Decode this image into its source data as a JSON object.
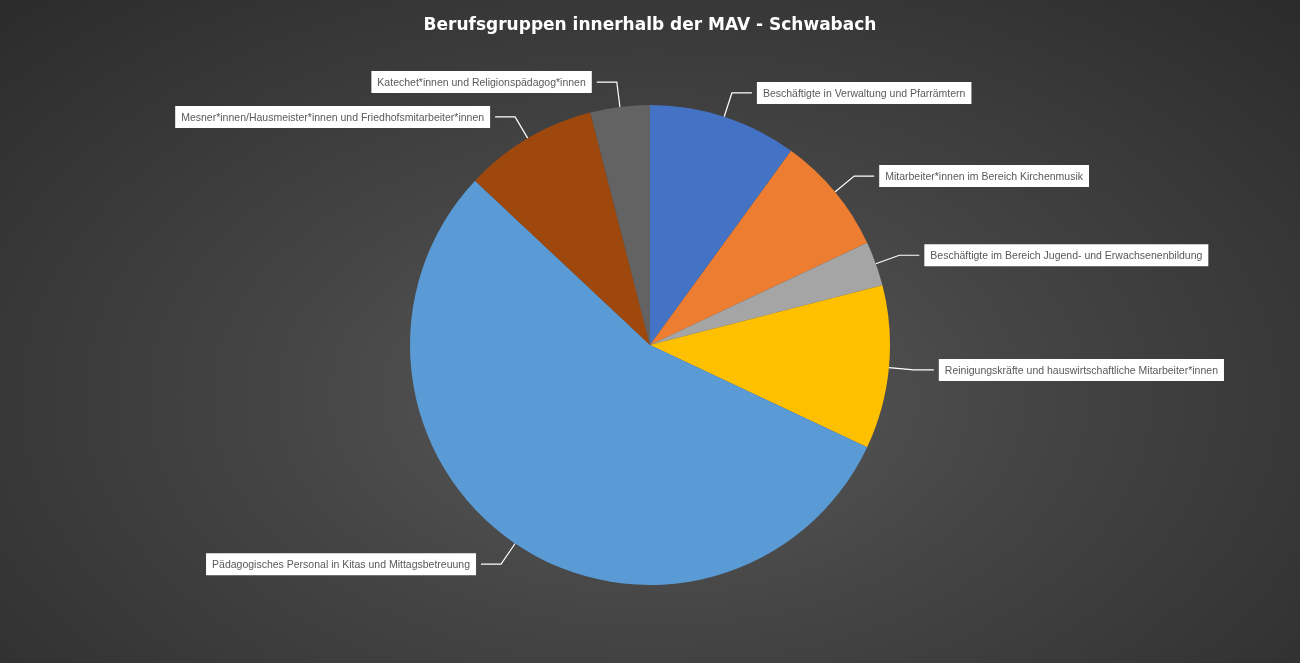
{
  "chart_data": {
    "type": "pie",
    "title": "Berufsgruppen innerhalb der MAV - Schwabach",
    "categories": [
      "Beschäftigte in Verwaltung und Pfarrämtern",
      "Mitarbeiter*innen im Bereich Kirchenmusik",
      "Beschäftigte im Bereich Jugend- und Erwachsenenbildung",
      "Reinigungskräfte und hauswirtschaftliche Mitarbeiter*innen",
      "Pädagogisches Personal in Kitas und Mittagsbetreuung",
      "Mesner*innen/Hausmeister*innen und Friedhofsmitarbeiter*innen",
      "Katechet*innen und Religionspädagog*innen"
    ],
    "values": [
      10,
      8,
      3,
      11,
      55,
      9,
      4
    ],
    "colors": [
      "#4472c4",
      "#ed7d31",
      "#a5a5a5",
      "#ffc000",
      "#5b9bd5",
      "#9e480e",
      "#636363"
    ]
  }
}
